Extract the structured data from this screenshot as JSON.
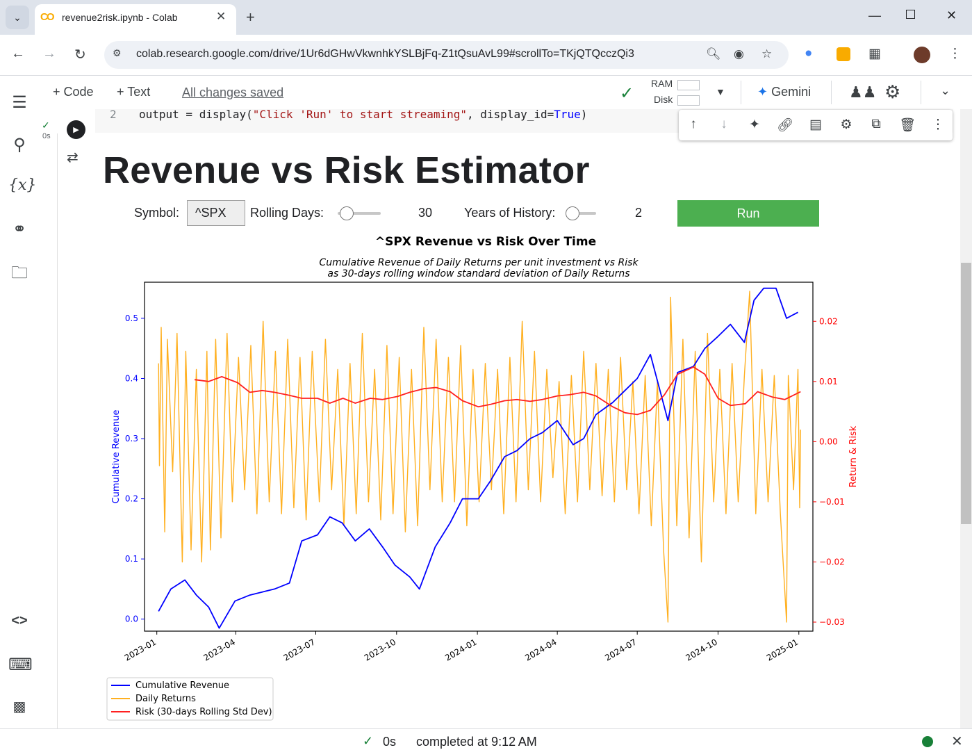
{
  "browser": {
    "tab_title": "revenue2risk.ipynb - Colab",
    "favicon_text": "CO",
    "url": "colab.research.google.com/drive/1Ur6dGHwVkwnhkYSLBjFq-Z1tQsuAvL99#scrollTo=TKjQTQcczQi3"
  },
  "toolbar": {
    "code_label": "+ Code",
    "text_label": "+ Text",
    "saved_status": "All changes saved",
    "ram_label": "RAM",
    "disk_label": "Disk",
    "gemini_label": "Gemini"
  },
  "code_cell": {
    "line_number": "2",
    "exec_time": "0s"
  },
  "app": {
    "title": "Revenue vs Risk Estimator",
    "symbol_label": "Symbol:",
    "symbol_value": "^SPX",
    "rolling_label": "Rolling Days:",
    "rolling_value": "30",
    "rolling_slider_fraction": 0.0,
    "years_label": "Years of History:",
    "years_value": "2",
    "years_slider_fraction": 0.0,
    "run_label": "Run"
  },
  "chart_data": {
    "type": "line",
    "title": "^SPX Revenue  vs Risk Over Time",
    "subtitle_line1": "Cumulative Revenue of Daily Returns per unit investment vs Risk",
    "subtitle_line2": "as 30-days rolling window standard deviation of Daily Returns",
    "ylabel_left": "Cumulative Revenue",
    "ylabel_right": "Return & Risk",
    "x_range": [
      "2023-01",
      "2025-01"
    ],
    "x_ticks": [
      "2023-01",
      "2023-04",
      "2023-07",
      "2023-10",
      "2024-01",
      "2024-04",
      "2024-07",
      "2024-10",
      "2025-01"
    ],
    "ylim_left": [
      -0.02,
      0.56
    ],
    "yticks_left": [
      "0.0",
      "0.1",
      "0.2",
      "0.3",
      "0.4",
      "0.5"
    ],
    "ylim_right": [
      -0.0315,
      0.0265
    ],
    "yticks_right": [
      "0.02",
      "0.01",
      "0.00",
      "−0.01",
      "−0.02",
      "−0.03"
    ],
    "legend_position": "lower-left",
    "colors": {
      "revenue": "#0000ff",
      "returns": "#ffb020",
      "risk": "#ff2020"
    },
    "series": [
      {
        "name": "Cumulative Revenue",
        "axis": "left",
        "points": [
          [
            "2023-01-03",
            0.013
          ],
          [
            "2023-01-17",
            0.05
          ],
          [
            "2023-02-02",
            0.065
          ],
          [
            "2023-02-15",
            0.04
          ],
          [
            "2023-03-01",
            0.02
          ],
          [
            "2023-03-13",
            -0.015
          ],
          [
            "2023-03-31",
            0.03
          ],
          [
            "2023-04-17",
            0.04
          ],
          [
            "2023-05-01",
            0.045
          ],
          [
            "2023-05-15",
            0.05
          ],
          [
            "2023-06-01",
            0.06
          ],
          [
            "2023-06-15",
            0.13
          ],
          [
            "2023-07-03",
            0.14
          ],
          [
            "2023-07-17",
            0.17
          ],
          [
            "2023-07-31",
            0.16
          ],
          [
            "2023-08-15",
            0.13
          ],
          [
            "2023-08-31",
            0.15
          ],
          [
            "2023-09-15",
            0.12
          ],
          [
            "2023-09-29",
            0.09
          ],
          [
            "2023-10-16",
            0.07
          ],
          [
            "2023-10-27",
            0.05
          ],
          [
            "2023-11-14",
            0.12
          ],
          [
            "2023-12-01",
            0.16
          ],
          [
            "2023-12-15",
            0.2
          ],
          [
            "2024-01-02",
            0.2
          ],
          [
            "2024-01-16",
            0.23
          ],
          [
            "2024-02-01",
            0.27
          ],
          [
            "2024-02-15",
            0.28
          ],
          [
            "2024-03-01",
            0.3
          ],
          [
            "2024-03-15",
            0.31
          ],
          [
            "2024-04-01",
            0.33
          ],
          [
            "2024-04-19",
            0.29
          ],
          [
            "2024-05-01",
            0.3
          ],
          [
            "2024-05-15",
            0.34
          ],
          [
            "2024-06-03",
            0.36
          ],
          [
            "2024-06-17",
            0.38
          ],
          [
            "2024-07-01",
            0.4
          ],
          [
            "2024-07-16",
            0.44
          ],
          [
            "2024-08-05",
            0.33
          ],
          [
            "2024-08-16",
            0.41
          ],
          [
            "2024-09-03",
            0.42
          ],
          [
            "2024-09-16",
            0.45
          ],
          [
            "2024-10-01",
            0.47
          ],
          [
            "2024-10-15",
            0.49
          ],
          [
            "2024-10-31",
            0.46
          ],
          [
            "2024-11-11",
            0.53
          ],
          [
            "2024-11-22",
            0.55
          ],
          [
            "2024-12-06",
            0.55
          ],
          [
            "2024-12-18",
            0.5
          ],
          [
            "2024-12-31",
            0.51
          ]
        ]
      },
      {
        "name": "Daily Returns",
        "axis": "right",
        "points": [
          [
            "2023-01-03",
            0.013
          ],
          [
            "2023-01-04",
            -0.004
          ],
          [
            "2023-01-06",
            0.019
          ],
          [
            "2023-01-10",
            -0.015
          ],
          [
            "2023-01-13",
            0.017
          ],
          [
            "2023-01-19",
            -0.005
          ],
          [
            "2023-01-24",
            0.018
          ],
          [
            "2023-01-30",
            -0.02
          ],
          [
            "2023-02-03",
            0.015
          ],
          [
            "2023-02-09",
            -0.018
          ],
          [
            "2023-02-15",
            0.012
          ],
          [
            "2023-02-21",
            -0.02
          ],
          [
            "2023-02-27",
            0.015
          ],
          [
            "2023-03-03",
            -0.018
          ],
          [
            "2023-03-09",
            0.017
          ],
          [
            "2023-03-15",
            -0.016
          ],
          [
            "2023-03-22",
            0.018
          ],
          [
            "2023-03-28",
            -0.01
          ],
          [
            "2023-04-04",
            0.014
          ],
          [
            "2023-04-11",
            -0.008
          ],
          [
            "2023-04-18",
            0.016
          ],
          [
            "2023-04-25",
            -0.012
          ],
          [
            "2023-05-02",
            0.02
          ],
          [
            "2023-05-09",
            -0.01
          ],
          [
            "2023-05-16",
            0.015
          ],
          [
            "2023-05-23",
            -0.012
          ],
          [
            "2023-05-30",
            0.017
          ],
          [
            "2023-06-06",
            -0.011
          ],
          [
            "2023-06-13",
            0.014
          ],
          [
            "2023-06-20",
            -0.013
          ],
          [
            "2023-06-27",
            0.015
          ],
          [
            "2023-07-05",
            -0.01
          ],
          [
            "2023-07-12",
            0.017
          ],
          [
            "2023-07-19",
            -0.008
          ],
          [
            "2023-07-26",
            0.012
          ],
          [
            "2023-08-02",
            -0.014
          ],
          [
            "2023-08-09",
            0.013
          ],
          [
            "2023-08-16",
            -0.012
          ],
          [
            "2023-08-23",
            0.018
          ],
          [
            "2023-08-30",
            -0.01
          ],
          [
            "2023-09-06",
            0.012
          ],
          [
            "2023-09-13",
            -0.013
          ],
          [
            "2023-09-20",
            0.016
          ],
          [
            "2023-09-27",
            -0.012
          ],
          [
            "2023-10-04",
            0.014
          ],
          [
            "2023-10-11",
            -0.015
          ],
          [
            "2023-10-18",
            0.012
          ],
          [
            "2023-10-25",
            -0.014
          ],
          [
            "2023-11-01",
            0.019
          ],
          [
            "2023-11-08",
            -0.008
          ],
          [
            "2023-11-15",
            0.017
          ],
          [
            "2023-11-22",
            -0.01
          ],
          [
            "2023-11-29",
            0.014
          ],
          [
            "2023-12-06",
            -0.01
          ],
          [
            "2023-12-13",
            0.016
          ],
          [
            "2023-12-20",
            -0.014
          ],
          [
            "2023-12-27",
            0.012
          ],
          [
            "2024-01-03",
            -0.01
          ],
          [
            "2024-01-10",
            0.013
          ],
          [
            "2024-01-17",
            -0.008
          ],
          [
            "2024-01-24",
            0.012
          ],
          [
            "2024-01-31",
            -0.012
          ],
          [
            "2024-02-07",
            0.014
          ],
          [
            "2024-02-14",
            -0.01
          ],
          [
            "2024-02-21",
            0.02
          ],
          [
            "2024-02-28",
            -0.008
          ],
          [
            "2024-03-06",
            0.015
          ],
          [
            "2024-03-13",
            -0.01
          ],
          [
            "2024-03-20",
            0.012
          ],
          [
            "2024-03-27",
            -0.006
          ],
          [
            "2024-04-03",
            0.01
          ],
          [
            "2024-04-10",
            -0.012
          ],
          [
            "2024-04-17",
            0.011
          ],
          [
            "2024-04-24",
            -0.01
          ],
          [
            "2024-05-01",
            0.015
          ],
          [
            "2024-05-08",
            -0.008
          ],
          [
            "2024-05-15",
            0.013
          ],
          [
            "2024-05-22",
            -0.009
          ],
          [
            "2024-05-29",
            0.012
          ],
          [
            "2024-06-05",
            -0.01
          ],
          [
            "2024-06-12",
            0.014
          ],
          [
            "2024-06-19",
            -0.008
          ],
          [
            "2024-06-26",
            0.01
          ],
          [
            "2024-07-03",
            -0.012
          ],
          [
            "2024-07-10",
            0.011
          ],
          [
            "2024-07-17",
            -0.014
          ],
          [
            "2024-07-24",
            0.01
          ],
          [
            "2024-07-31",
            -0.018
          ],
          [
            "2024-08-05",
            -0.03
          ],
          [
            "2024-08-08",
            0.024
          ],
          [
            "2024-08-15",
            -0.014
          ],
          [
            "2024-08-22",
            0.017
          ],
          [
            "2024-08-29",
            -0.016
          ],
          [
            "2024-09-05",
            0.015
          ],
          [
            "2024-09-12",
            -0.02
          ],
          [
            "2024-09-19",
            0.018
          ],
          [
            "2024-09-26",
            -0.01
          ],
          [
            "2024-10-03",
            0.012
          ],
          [
            "2024-10-10",
            -0.012
          ],
          [
            "2024-10-17",
            0.013
          ],
          [
            "2024-10-24",
            -0.01
          ],
          [
            "2024-10-31",
            0.011
          ],
          [
            "2024-11-06",
            0.025
          ],
          [
            "2024-11-13",
            -0.012
          ],
          [
            "2024-11-20",
            0.012
          ],
          [
            "2024-11-27",
            -0.01
          ],
          [
            "2024-12-04",
            0.011
          ],
          [
            "2024-12-11",
            -0.012
          ],
          [
            "2024-12-18",
            -0.03
          ],
          [
            "2024-12-20",
            0.011
          ],
          [
            "2024-12-26",
            -0.008
          ],
          [
            "2024-12-31",
            0.012
          ],
          [
            "2025-01-02",
            -0.011
          ],
          [
            "2025-01-03",
            0.002
          ]
        ]
      },
      {
        "name": "Risk (30-days Rolling Std Dev)",
        "axis": "right",
        "points": [
          [
            "2023-02-13",
            0.0103
          ],
          [
            "2023-03-01",
            0.01
          ],
          [
            "2023-03-16",
            0.0108
          ],
          [
            "2023-04-03",
            0.0098
          ],
          [
            "2023-04-17",
            0.0082
          ],
          [
            "2023-05-01",
            0.0085
          ],
          [
            "2023-05-15",
            0.0082
          ],
          [
            "2023-06-01",
            0.0077
          ],
          [
            "2023-06-15",
            0.0072
          ],
          [
            "2023-07-03",
            0.0072
          ],
          [
            "2023-07-17",
            0.0064
          ],
          [
            "2023-08-01",
            0.0072
          ],
          [
            "2023-08-15",
            0.0064
          ],
          [
            "2023-09-01",
            0.0072
          ],
          [
            "2023-09-15",
            0.007
          ],
          [
            "2023-10-02",
            0.0075
          ],
          [
            "2023-10-16",
            0.0082
          ],
          [
            "2023-11-01",
            0.0088
          ],
          [
            "2023-11-15",
            0.009
          ],
          [
            "2023-12-01",
            0.0083
          ],
          [
            "2023-12-15",
            0.0068
          ],
          [
            "2024-01-02",
            0.0058
          ],
          [
            "2024-01-16",
            0.0062
          ],
          [
            "2024-02-01",
            0.0068
          ],
          [
            "2024-02-15",
            0.007
          ],
          [
            "2024-03-01",
            0.0067
          ],
          [
            "2024-03-15",
            0.007
          ],
          [
            "2024-04-01",
            0.0076
          ],
          [
            "2024-04-15",
            0.0078
          ],
          [
            "2024-05-01",
            0.0082
          ],
          [
            "2024-05-15",
            0.0076
          ],
          [
            "2024-06-03",
            0.0058
          ],
          [
            "2024-06-17",
            0.0048
          ],
          [
            "2024-07-01",
            0.0045
          ],
          [
            "2024-07-16",
            0.0052
          ],
          [
            "2024-08-01",
            0.0078
          ],
          [
            "2024-08-16",
            0.0112
          ],
          [
            "2024-09-03",
            0.0124
          ],
          [
            "2024-09-16",
            0.0112
          ],
          [
            "2024-10-01",
            0.0072
          ],
          [
            "2024-10-15",
            0.006
          ],
          [
            "2024-11-01",
            0.0063
          ],
          [
            "2024-11-15",
            0.0083
          ],
          [
            "2024-12-02",
            0.0074
          ],
          [
            "2024-12-16",
            0.007
          ],
          [
            "2025-01-03",
            0.0083
          ]
        ]
      }
    ]
  },
  "status": {
    "time": "0s",
    "text": "completed at 9:12 AM"
  }
}
